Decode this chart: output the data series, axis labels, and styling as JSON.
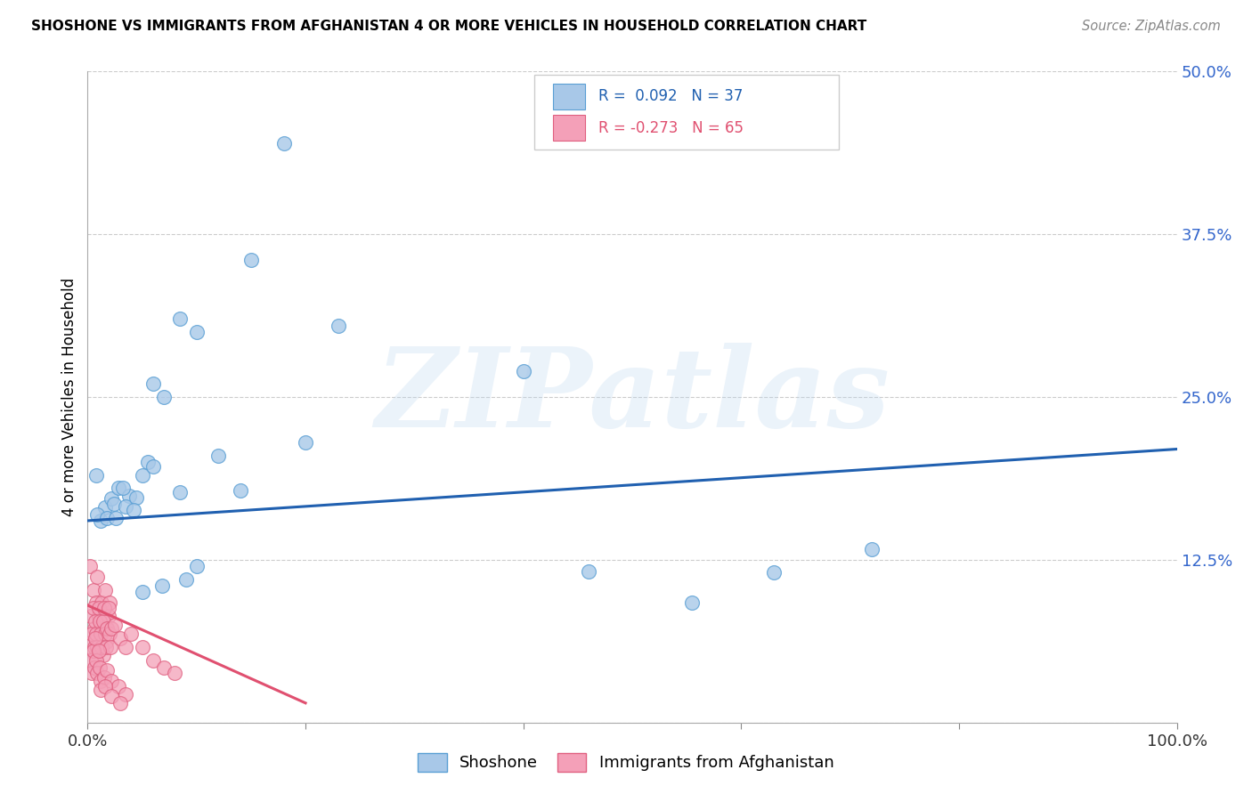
{
  "title": "SHOSHONE VS IMMIGRANTS FROM AFGHANISTAN 4 OR MORE VEHICLES IN HOUSEHOLD CORRELATION CHART",
  "source": "Source: ZipAtlas.com",
  "ylabel": "4 or more Vehicles in Household",
  "xlim": [
    0,
    1.0
  ],
  "ylim": [
    0,
    0.5
  ],
  "yticks": [
    0,
    0.125,
    0.25,
    0.375,
    0.5
  ],
  "xticks": [
    0,
    0.2,
    0.4,
    0.6,
    0.8,
    1.0
  ],
  "blue_color": "#a8c8e8",
  "pink_color": "#f4a0b8",
  "blue_edge_color": "#5a9fd4",
  "pink_edge_color": "#e06080",
  "blue_line_color": "#2060b0",
  "pink_line_color": "#e05070",
  "tick_label_color": "#3366cc",
  "watermark_text": "ZIPatlas",
  "blue_points_x": [
    0.016,
    0.022,
    0.008,
    0.012,
    0.028,
    0.038,
    0.055,
    0.032,
    0.009,
    0.018,
    0.024,
    0.07,
    0.085,
    0.06,
    0.1,
    0.15,
    0.18,
    0.2,
    0.23,
    0.4,
    0.12,
    0.14,
    0.05,
    0.06,
    0.035,
    0.045,
    0.026,
    0.068,
    0.05,
    0.09,
    0.1,
    0.46,
    0.555,
    0.63,
    0.72,
    0.085,
    0.042
  ],
  "blue_points_y": [
    0.165,
    0.172,
    0.19,
    0.155,
    0.18,
    0.174,
    0.2,
    0.18,
    0.16,
    0.157,
    0.168,
    0.25,
    0.31,
    0.26,
    0.3,
    0.355,
    0.445,
    0.215,
    0.305,
    0.27,
    0.205,
    0.178,
    0.19,
    0.197,
    0.166,
    0.173,
    0.157,
    0.105,
    0.1,
    0.11,
    0.12,
    0.116,
    0.092,
    0.115,
    0.133,
    0.177,
    0.163
  ],
  "pink_points_x": [
    0.002,
    0.003,
    0.004,
    0.005,
    0.006,
    0.007,
    0.008,
    0.009,
    0.01,
    0.011,
    0.012,
    0.013,
    0.014,
    0.015,
    0.016,
    0.017,
    0.018,
    0.019,
    0.02,
    0.003,
    0.004,
    0.005,
    0.006,
    0.007,
    0.008,
    0.009,
    0.01,
    0.011,
    0.012,
    0.013,
    0.014,
    0.015,
    0.016,
    0.017,
    0.018,
    0.019,
    0.02,
    0.021,
    0.022,
    0.004,
    0.005,
    0.006,
    0.007,
    0.008,
    0.009,
    0.01,
    0.011,
    0.012,
    0.025,
    0.03,
    0.035,
    0.04,
    0.05,
    0.06,
    0.07,
    0.08,
    0.015,
    0.018,
    0.022,
    0.028,
    0.035,
    0.012,
    0.016,
    0.022,
    0.03
  ],
  "pink_points_y": [
    0.12,
    0.082,
    0.062,
    0.102,
    0.072,
    0.052,
    0.092,
    0.112,
    0.082,
    0.062,
    0.072,
    0.092,
    0.052,
    0.082,
    0.102,
    0.062,
    0.072,
    0.082,
    0.092,
    0.048,
    0.068,
    0.088,
    0.058,
    0.078,
    0.068,
    0.058,
    0.088,
    0.078,
    0.068,
    0.058,
    0.078,
    0.088,
    0.068,
    0.058,
    0.072,
    0.088,
    0.068,
    0.058,
    0.072,
    0.038,
    0.055,
    0.042,
    0.065,
    0.048,
    0.038,
    0.055,
    0.042,
    0.032,
    0.075,
    0.065,
    0.058,
    0.068,
    0.058,
    0.048,
    0.042,
    0.038,
    0.035,
    0.04,
    0.032,
    0.028,
    0.022,
    0.025,
    0.028,
    0.02,
    0.015
  ],
  "blue_trend_x": [
    0.0,
    1.0
  ],
  "blue_trend_y": [
    0.155,
    0.21
  ],
  "pink_trend_x": [
    0.0,
    0.2
  ],
  "pink_trend_y": [
    0.09,
    0.015
  ],
  "legend_line1_text": "R =  0.092   N = 37",
  "legend_line2_text": "R = -0.273   N = 65",
  "bottom_labels": [
    "Shoshone",
    "Immigrants from Afghanistan"
  ]
}
